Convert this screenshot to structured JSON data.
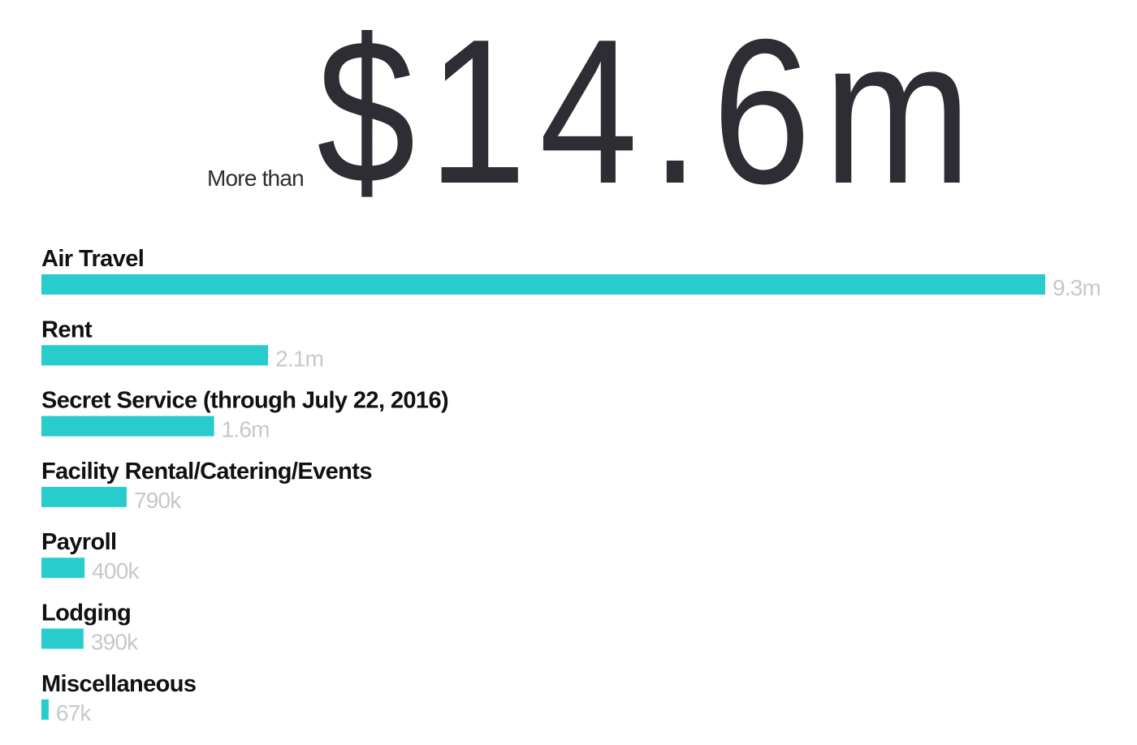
{
  "headline": {
    "prefix": "More than",
    "total": "$14.6m"
  },
  "colors": {
    "bar": "#29cccc",
    "label": "#111111",
    "value_label": "#c8c8c8",
    "headline": "#2d2d33"
  },
  "chart_data": {
    "type": "bar",
    "orientation": "horizontal",
    "title": "",
    "xlabel": "",
    "ylabel": "",
    "grid": false,
    "xlim": [
      0,
      9300000
    ],
    "categories": [
      "Air Travel",
      "Rent",
      "Secret Service (through July 22, 2016)",
      "Facility Rental/Catering/Events",
      "Payroll",
      "Lodging",
      "Miscellaneous"
    ],
    "values": [
      9300000,
      2100000,
      1600000,
      790000,
      400000,
      390000,
      67000
    ],
    "value_labels": [
      "9.3m",
      "2.1m",
      "1.6m",
      "790k",
      "400k",
      "390k",
      "67k"
    ]
  }
}
